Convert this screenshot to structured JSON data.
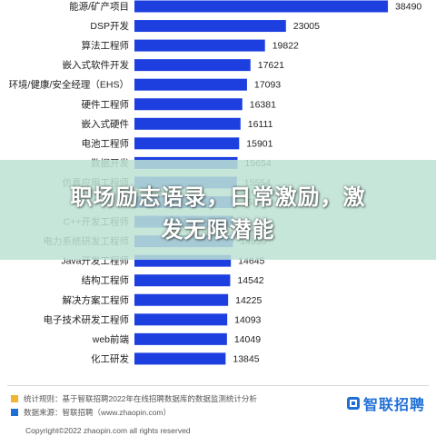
{
  "chart_data": {
    "type": "bar",
    "orientation": "horizontal",
    "categories": [
      "能源/矿产项目",
      "DSP开发",
      "算法工程师",
      "嵌入式软件开发",
      "环境/健康/安全经理（EHS）",
      "硬件工程师",
      "嵌入式硬件",
      "电池工程师",
      "数据开发",
      "仿真应用工程师",
      "",
      "C++开发工程师",
      "电力系统研发工程师",
      "Java开发工程师",
      "结构工程师",
      "解决方案工程师",
      "电子技术研发工程师",
      "web前端",
      "化工研发"
    ],
    "values": [
      38490,
      23005,
      19822,
      17621,
      17093,
      16381,
      16111,
      15901,
      15654,
      15554,
      15252,
      14986,
      14959,
      14645,
      14542,
      14225,
      14093,
      14049,
      13845
    ],
    "value_labels": [
      "38490",
      "23005",
      "19822",
      "17621",
      "17093",
      "16381",
      "16111",
      "15901",
      "15654",
      "15554",
      "15252",
      "",
      "14959",
      "14645",
      "14542",
      "14225",
      "14093",
      "14049",
      "13845"
    ],
    "xlim": [
      0,
      40000
    ],
    "bar_color": "#1d3fe0",
    "grid": false,
    "legend": "none"
  },
  "overlay": {
    "title_line1": "职场励志语录，日常激励，激",
    "title_line2": "发无限潜能",
    "color": "#bee2d4"
  },
  "footer": {
    "stats_note": "统计规则：基于智联招聘2022年在线招聘数据库的数据监测统计分析",
    "source_note": "数据来源：智联招聘（www.zhaopin.com）",
    "copyright": "Copyright©2022 zhaopin.com all rights reserved",
    "logo_text": "智联招聘",
    "stats_color": "#f2b531",
    "source_color": "#1f6fd6"
  }
}
